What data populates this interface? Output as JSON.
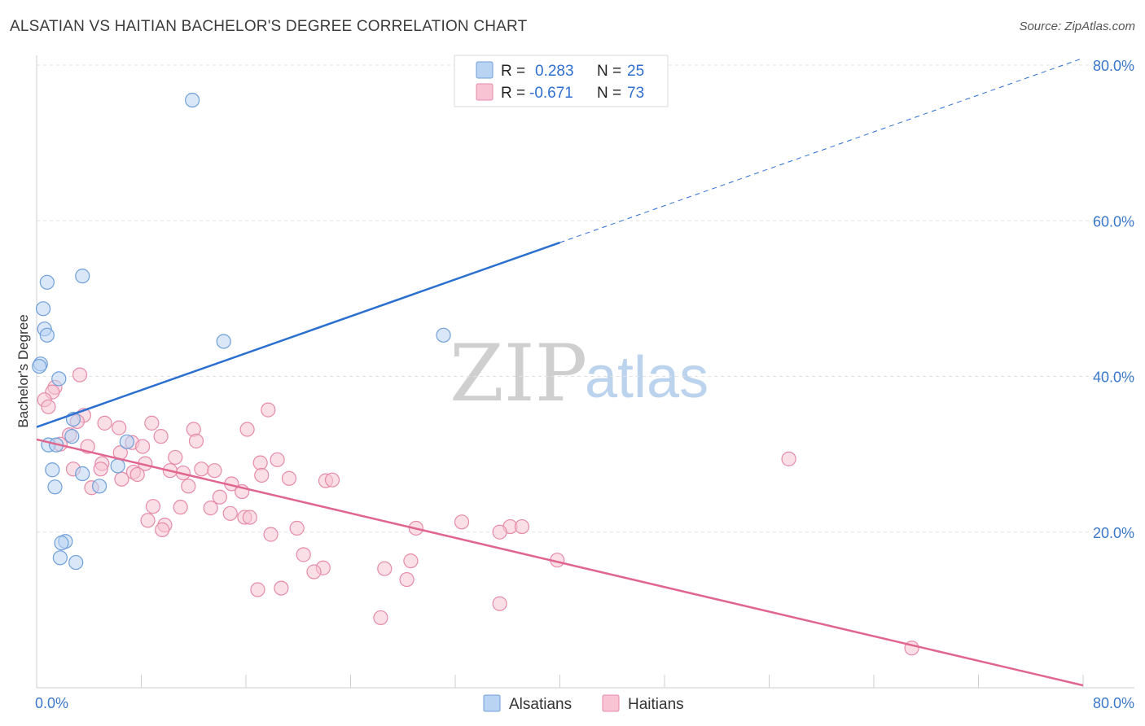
{
  "title": "ALSATIAN VS HAITIAN BACHELOR'S DEGREE CORRELATION CHART",
  "source": "Source: ZipAtlas.com",
  "watermark": {
    "zip": "ZIP",
    "atlas": "atlas"
  },
  "colors": {
    "alsatian_fill": "#b9d3f3",
    "alsatian_stroke": "#6f9fd8",
    "alsatian_line": "#2b6fcf",
    "haitian_fill": "#f8c4d4",
    "haitian_stroke": "#e58aa8",
    "haitian_line": "#e0668f",
    "tick_label": "#3b78c9",
    "grid": "#e2e2e2"
  },
  "legend": {
    "r_label": "R =",
    "n_label": "N =",
    "alsatian": {
      "r": "0.283",
      "n": "25"
    },
    "haitian": {
      "r": "-0.671",
      "n": "73"
    }
  },
  "bottom_legend": {
    "alsatians": "Alsatians",
    "haitians": "Haitians"
  },
  "chart_data": {
    "type": "scatter",
    "title": "ALSATIAN VS HAITIAN BACHELOR'S DEGREE CORRELATION CHART",
    "xlabel": "",
    "ylabel": "Bachelor's Degree",
    "xlim": [
      0,
      80
    ],
    "ylim": [
      0,
      80
    ],
    "x_tick_labels": [
      "0.0%",
      "80.0%"
    ],
    "y_tick_labels": [
      "20.0%",
      "40.0%",
      "60.0%",
      "80.0%"
    ],
    "y_ticks": [
      20,
      40,
      60,
      80
    ],
    "series": [
      {
        "name": "Alsatians",
        "r": 0.283,
        "n": 25,
        "trend": {
          "x0": 0,
          "y0": 33.5,
          "x1": 40,
          "y1": 57.2,
          "dashed_to_x": 80,
          "dashed_to_y": 80.9
        },
        "points": [
          [
            11.9,
            75.5
          ],
          [
            3.5,
            52.9
          ],
          [
            0.8,
            52.1
          ],
          [
            0.5,
            48.7
          ],
          [
            0.6,
            46.1
          ],
          [
            0.8,
            45.3
          ],
          [
            14.3,
            44.5
          ],
          [
            31.1,
            45.3
          ],
          [
            0.3,
            41.6
          ],
          [
            0.2,
            41.3
          ],
          [
            1.7,
            39.7
          ],
          [
            2.8,
            34.5
          ],
          [
            2.7,
            32.3
          ],
          [
            0.9,
            31.2
          ],
          [
            1.5,
            31.2
          ],
          [
            6.9,
            31.6
          ],
          [
            1.2,
            28.0
          ],
          [
            6.2,
            28.5
          ],
          [
            3.5,
            27.5
          ],
          [
            1.4,
            25.8
          ],
          [
            4.8,
            25.9
          ],
          [
            2.2,
            18.8
          ],
          [
            1.9,
            18.6
          ],
          [
            1.8,
            16.7
          ],
          [
            3.0,
            16.1
          ]
        ]
      },
      {
        "name": "Haitians",
        "r": -0.671,
        "n": 73,
        "trend": {
          "x0": 0,
          "y0": 31.9,
          "x1": 80,
          "y1": 0.3
        },
        "points": [
          [
            1.4,
            38.6
          ],
          [
            1.2,
            38.0
          ],
          [
            3.3,
            40.2
          ],
          [
            0.6,
            37.0
          ],
          [
            0.9,
            36.1
          ],
          [
            17.7,
            35.7
          ],
          [
            3.6,
            35.0
          ],
          [
            3.1,
            34.2
          ],
          [
            5.2,
            34.0
          ],
          [
            8.8,
            34.0
          ],
          [
            12.0,
            33.2
          ],
          [
            6.3,
            33.4
          ],
          [
            16.1,
            33.2
          ],
          [
            2.5,
            32.5
          ],
          [
            9.5,
            32.3
          ],
          [
            12.2,
            31.7
          ],
          [
            7.3,
            31.5
          ],
          [
            1.8,
            31.3
          ],
          [
            8.1,
            31.0
          ],
          [
            3.9,
            31.0
          ],
          [
            6.4,
            30.2
          ],
          [
            10.6,
            29.6
          ],
          [
            18.4,
            29.3
          ],
          [
            17.1,
            28.9
          ],
          [
            5.0,
            28.8
          ],
          [
            8.3,
            28.8
          ],
          [
            57.5,
            29.4
          ],
          [
            2.8,
            28.1
          ],
          [
            4.9,
            28.1
          ],
          [
            12.6,
            28.1
          ],
          [
            13.6,
            27.9
          ],
          [
            7.4,
            27.7
          ],
          [
            10.2,
            27.9
          ],
          [
            11.2,
            27.6
          ],
          [
            7.7,
            27.4
          ],
          [
            17.2,
            27.3
          ],
          [
            19.3,
            26.9
          ],
          [
            22.1,
            26.6
          ],
          [
            22.6,
            26.7
          ],
          [
            6.5,
            26.8
          ],
          [
            14.9,
            26.2
          ],
          [
            11.6,
            25.9
          ],
          [
            4.2,
            25.7
          ],
          [
            15.7,
            25.2
          ],
          [
            14.0,
            24.5
          ],
          [
            11.0,
            23.2
          ],
          [
            8.9,
            23.3
          ],
          [
            13.3,
            23.1
          ],
          [
            14.8,
            22.4
          ],
          [
            15.9,
            21.9
          ],
          [
            16.3,
            21.9
          ],
          [
            8.5,
            21.5
          ],
          [
            9.8,
            20.9
          ],
          [
            9.6,
            20.3
          ],
          [
            19.9,
            20.5
          ],
          [
            29.0,
            20.5
          ],
          [
            32.5,
            21.3
          ],
          [
            36.2,
            20.7
          ],
          [
            37.1,
            20.7
          ],
          [
            35.4,
            20.0
          ],
          [
            17.9,
            19.7
          ],
          [
            20.4,
            17.1
          ],
          [
            39.8,
            16.4
          ],
          [
            28.6,
            16.3
          ],
          [
            21.9,
            15.4
          ],
          [
            26.6,
            15.3
          ],
          [
            21.2,
            14.9
          ],
          [
            28.3,
            13.9
          ],
          [
            16.9,
            12.6
          ],
          [
            18.7,
            12.8
          ],
          [
            35.4,
            10.8
          ],
          [
            26.3,
            9.0
          ],
          [
            66.9,
            5.1
          ]
        ]
      }
    ]
  }
}
